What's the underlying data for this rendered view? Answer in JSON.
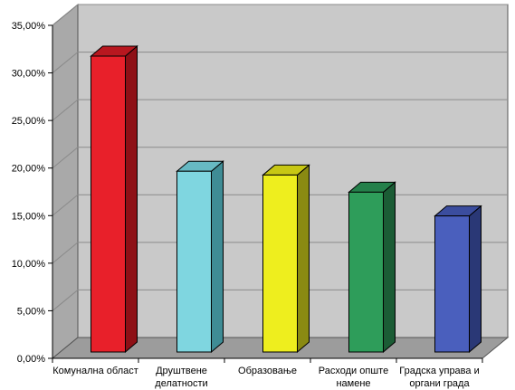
{
  "chart_data": {
    "type": "bar",
    "categories": [
      [
        "Комунална област"
      ],
      [
        "Друштвене",
        "делатности"
      ],
      [
        "Образовање"
      ],
      [
        "Расходи опште",
        "намене"
      ],
      [
        "Градска управа и",
        "органи града"
      ]
    ],
    "values": [
      31.1,
      19.0,
      18.6,
      16.8,
      14.3
    ],
    "ylim": [
      0,
      35
    ],
    "ytick_labels": [
      "0,00%",
      "5,00%",
      "10,00%",
      "15,00%",
      "20,00%",
      "25,00%",
      "30,00%",
      "35,00%"
    ],
    "grid": true,
    "legend": "none",
    "colors": {
      "bars": [
        "#e8202a",
        "#7fd6e0",
        "#eeee1e",
        "#2e9d5a",
        "#4a5fbd"
      ],
      "bar_tops": [
        "#b8171f",
        "#67b9c3",
        "#c7c714",
        "#24804a",
        "#3b4d9e"
      ],
      "bar_sides": [
        "#8e1016",
        "#3f8c95",
        "#8a8a12",
        "#1b5c35",
        "#2a3876"
      ],
      "plot_back": "#c9c9c9",
      "plot_side": "#a9a9a9",
      "floor": "#9c9c9c"
    }
  }
}
